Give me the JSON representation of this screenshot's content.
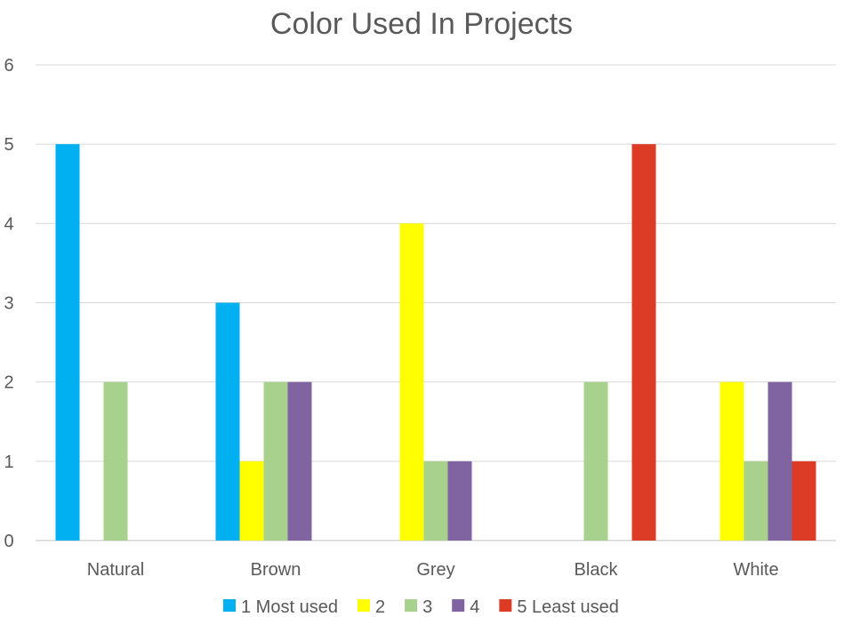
{
  "chart_data": {
    "type": "bar",
    "title": "Color Used In Projects",
    "xlabel": "",
    "ylabel": "",
    "categories": [
      "Natural",
      "Brown",
      "Grey",
      "Black",
      "White"
    ],
    "series": [
      {
        "name": "1 Most used",
        "color": "#00B0F0",
        "values": [
          5,
          3,
          0,
          0,
          0
        ]
      },
      {
        "name": "2",
        "color": "#FFFF00",
        "values": [
          0,
          1,
          4,
          0,
          2
        ]
      },
      {
        "name": "3",
        "color": "#A9D18E",
        "values": [
          2,
          2,
          1,
          2,
          1
        ]
      },
      {
        "name": "4",
        "color": "#8064A2",
        "values": [
          0,
          2,
          1,
          0,
          2
        ]
      },
      {
        "name": "5 Least used",
        "color": "#DC3B26",
        "values": [
          0,
          0,
          0,
          5,
          1
        ]
      }
    ],
    "ylim": [
      0,
      6
    ],
    "yticks": [
      0,
      1,
      2,
      3,
      4,
      5,
      6
    ],
    "grid": true,
    "legend": "bottom"
  }
}
